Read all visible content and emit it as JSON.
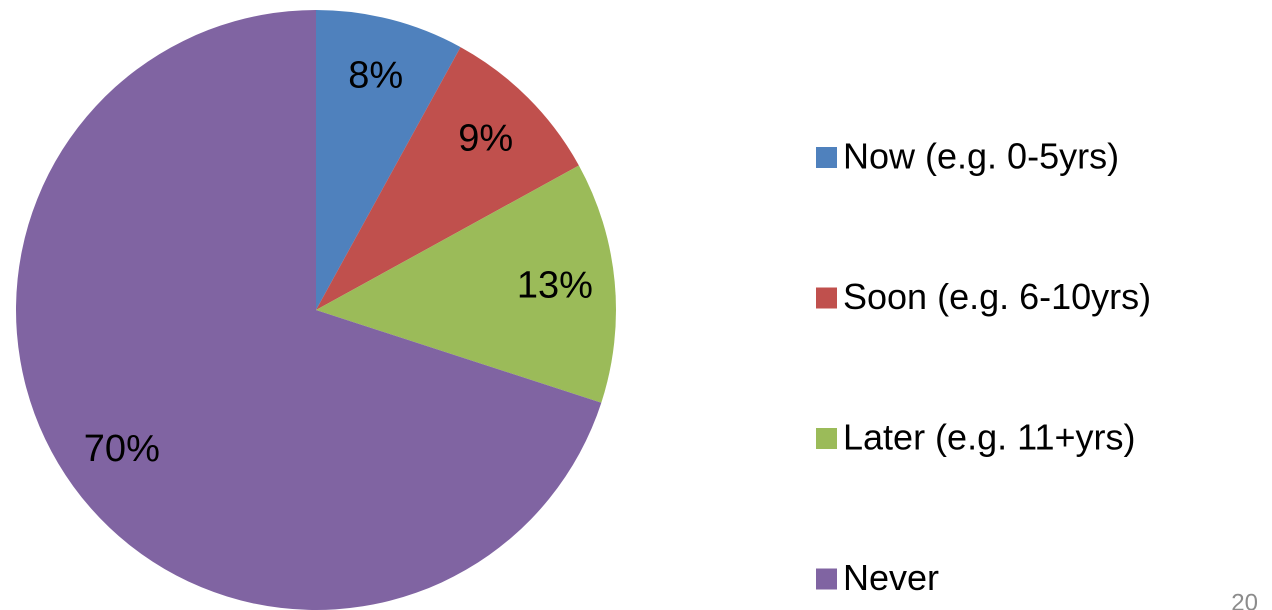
{
  "chart_data": {
    "type": "pie",
    "categories": [
      "Now (e.g. 0-5yrs)",
      "Soon (e.g. 6-10yrs)",
      "Later (e.g. 11+yrs)",
      "Never"
    ],
    "values": [
      8,
      9,
      13,
      70
    ],
    "value_labels": [
      "8%",
      "9%",
      "13%",
      "70%"
    ],
    "colors": [
      "#4f81bd",
      "#c0504d",
      "#9bbb59",
      "#8064a2"
    ],
    "legend": "right"
  },
  "page_number": "20"
}
